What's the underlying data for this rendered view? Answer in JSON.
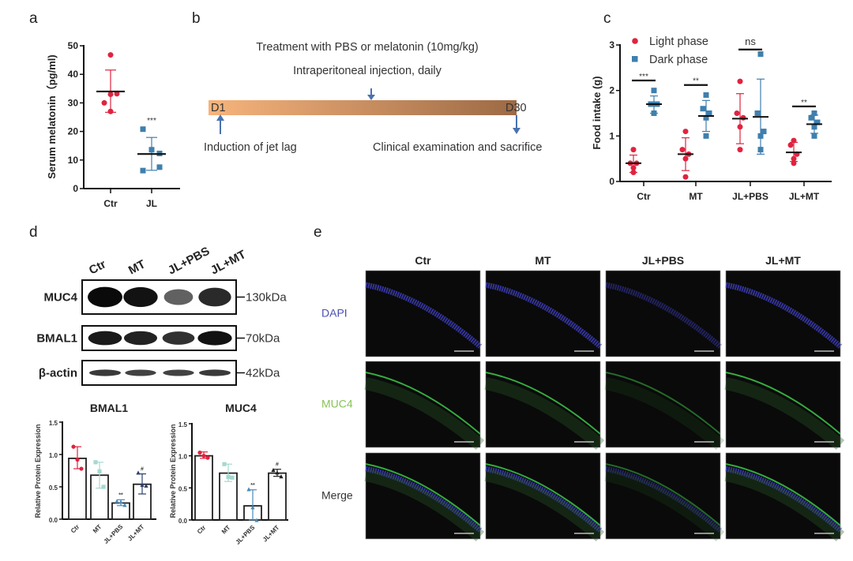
{
  "panel_labels": {
    "a": "a",
    "b": "b",
    "c": "c",
    "d": "d",
    "e": "e"
  },
  "timeline": {
    "treatment": "Treatment with PBS or melatonin (10mg/kg)",
    "injection": "Intraperitoneal injection, daily",
    "start": "D1",
    "end": "D30",
    "start_event": "Induction of jet lag",
    "end_event": "Clinical examination and sacrifice",
    "gradient_start": "#f7b47c",
    "gradient_end": "#9c6a45",
    "arrow_color": "#4a72b0"
  },
  "western_blot": {
    "lanes": [
      "Ctr",
      "MT",
      "JL+PBS",
      "JL+MT"
    ],
    "rows": [
      {
        "protein": "MUC4",
        "size": "130kDa",
        "intensity": [
          1.0,
          0.95,
          0.45,
          0.8
        ]
      },
      {
        "protein": "BMAL1",
        "size": "70kDa",
        "intensity": [
          0.9,
          0.85,
          0.75,
          0.95
        ]
      },
      {
        "protein": "β-actin",
        "size": "42kDa",
        "intensity": [
          0.7,
          0.65,
          0.65,
          0.7
        ]
      }
    ]
  },
  "if_images": {
    "columns": [
      "Ctr",
      "MT",
      "JL+PBS",
      "JL+MT"
    ],
    "rows": [
      {
        "label": "DAPI",
        "color": "#4a4fb0"
      },
      {
        "label": "MUC4",
        "color": "#86c454"
      },
      {
        "label": "Merge",
        "color": "#333333"
      }
    ]
  },
  "chart_data": [
    {
      "id": "a",
      "type": "scatter",
      "title": "",
      "xlabel": "",
      "ylabel": "Serum melatonin（pg/ml)",
      "categories": [
        "Ctr",
        "JL"
      ],
      "ylim": [
        0,
        50
      ],
      "yticks": [
        "0",
        "10",
        "20",
        "30",
        "40",
        "50"
      ],
      "series": [
        {
          "name": "Ctr",
          "color": "#e0233f",
          "marker": "circle",
          "values": [
            46.8,
            33.0,
            33.2,
            30.0,
            27.0
          ],
          "mean": 34.0,
          "err": [
            26.7,
            41.5
          ]
        },
        {
          "name": "JL",
          "color": "#3f7fae",
          "marker": "square",
          "values": [
            20.8,
            13.6,
            12.3,
            7.5,
            6.3
          ],
          "mean": 12.1,
          "err": [
            6.4,
            17.9
          ],
          "annotation": "***"
        }
      ]
    },
    {
      "id": "c",
      "type": "scatter",
      "title": "",
      "xlabel": "",
      "ylabel": "Food intake (g)",
      "categories": [
        "Ctr",
        "MT",
        "JL+PBS",
        "JL+MT"
      ],
      "ylim": [
        0,
        3
      ],
      "yticks": [
        "0",
        "1",
        "2",
        "3"
      ],
      "legend": {
        "placement": "top-left",
        "entries": [
          "Light phase",
          "Dark phase"
        ]
      },
      "series": [
        {
          "name": "Light phase",
          "color": "#e0233f",
          "marker": "circle",
          "values": [
            [
              0.7,
              0.4,
              0.4,
              0.3,
              0.2
            ],
            [
              1.1,
              0.7,
              0.6,
              0.5,
              0.1
            ],
            [
              2.2,
              1.5,
              1.4,
              1.2,
              0.7
            ],
            [
              0.9,
              0.8,
              0.6,
              0.5,
              0.4
            ]
          ],
          "means": [
            0.4,
            0.6,
            1.38,
            0.64
          ],
          "err": [
            [
              0.2,
              0.58
            ],
            [
              0.24,
              0.96
            ],
            [
              0.83,
              1.93
            ],
            [
              0.44,
              0.86
            ]
          ]
        },
        {
          "name": "Dark phase",
          "color": "#3f7fae",
          "marker": "square",
          "values": [
            [
              2.0,
              1.7,
              1.7,
              1.5,
              1.5
            ],
            [
              1.9,
              1.6,
              1.5,
              1.4,
              1.0
            ],
            [
              2.8,
              1.5,
              1.1,
              1.0,
              0.7
            ],
            [
              1.5,
              1.4,
              1.3,
              1.2,
              1.0
            ]
          ],
          "means": [
            1.7,
            1.44,
            1.42,
            1.26
          ],
          "err": [
            [
              1.5,
              1.88
            ],
            [
              1.1,
              1.78
            ],
            [
              0.6,
              2.25
            ],
            [
              1.06,
              1.46
            ]
          ]
        }
      ],
      "significance": [
        {
          "label": "***",
          "y": 2.22
        },
        {
          "label": "**",
          "y": 2.12
        },
        {
          "label": "ns",
          "y": 2.9
        },
        {
          "label": "**",
          "y": 1.65
        }
      ]
    },
    {
      "id": "d-bmal1",
      "type": "bar",
      "title": "BMAL1",
      "xlabel": "",
      "ylabel": "Relative Protein Expression",
      "categories": [
        "Ctr",
        "MT",
        "JL+PBS",
        "JL+MT"
      ],
      "ylim": [
        0,
        1.5
      ],
      "yticks": [
        "0.0",
        "0.5",
        "1.0",
        "1.5"
      ],
      "values": [
        0.94,
        0.68,
        0.25,
        0.54
      ],
      "points": [
        [
          1.12,
          0.92,
          0.78
        ],
        [
          0.88,
          0.74,
          0.5
        ],
        [
          0.28,
          0.27,
          0.22
        ],
        [
          0.72,
          0.53,
          0.52
        ]
      ],
      "err": [
        [
          0.78,
          1.12
        ],
        [
          0.48,
          0.88
        ],
        [
          0.21,
          0.3
        ],
        [
          0.39,
          0.7
        ]
      ],
      "annotations": [
        "",
        "",
        "**",
        "#"
      ],
      "colors": [
        "#e0233f",
        "#a6d8cf",
        "#4a8ab8",
        "#2d3f6e"
      ]
    },
    {
      "id": "d-muc4",
      "type": "bar",
      "title": "MUC4",
      "xlabel": "",
      "ylabel": "Relative Protein Expression",
      "categories": [
        "Ctr",
        "MT",
        "JL+PBS",
        "JL+MT"
      ],
      "ylim": [
        0,
        1.5
      ],
      "yticks": [
        "0.0",
        "0.5",
        "1.0",
        "1.5"
      ],
      "values": [
        1.0,
        0.73,
        0.22,
        0.73
      ],
      "points": [
        [
          1.05,
          1.0,
          0.97
        ],
        [
          0.87,
          0.67,
          0.66
        ],
        [
          0.48,
          0.2,
          0.0
        ],
        [
          0.78,
          0.74,
          0.68
        ]
      ],
      "err": [
        [
          0.96,
          1.06
        ],
        [
          0.6,
          0.87
        ],
        [
          0.0,
          0.47
        ],
        [
          0.68,
          0.79
        ]
      ],
      "annotations": [
        "",
        "",
        "**",
        "#"
      ],
      "colors": [
        "#e0233f",
        "#a6d8cf",
        "#4a8ab8",
        "#222222"
      ]
    }
  ]
}
